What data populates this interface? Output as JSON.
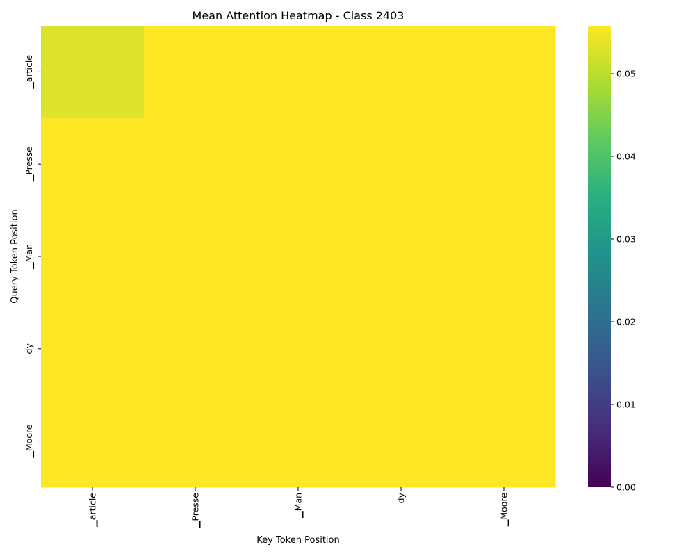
{
  "chart_data": {
    "type": "heatmap",
    "title": "Mean Attention Heatmap - Class 2403",
    "xlabel": "Key Token Position",
    "ylabel": "Query Token Position",
    "x_tick_labels": [
      "▁article",
      "▁Presse",
      "▁Man",
      "dy",
      "▁Moore"
    ],
    "y_tick_labels": [
      "▁article",
      "▁Presse",
      "▁Man",
      "dy",
      "▁Moore"
    ],
    "values": [
      [
        0.053,
        0.0558,
        0.0558,
        0.0558,
        0.0558
      ],
      [
        0.0558,
        0.0558,
        0.0558,
        0.0558,
        0.0558
      ],
      [
        0.0558,
        0.0558,
        0.0558,
        0.0558,
        0.0558
      ],
      [
        0.0558,
        0.0558,
        0.0558,
        0.0558,
        0.0558
      ],
      [
        0.0558,
        0.0558,
        0.0558,
        0.0558,
        0.0558
      ]
    ],
    "colormap": "viridis",
    "colorbar": {
      "vmin": 0.0,
      "vmax": 0.0558,
      "ticks": [
        0.0,
        0.01,
        0.02,
        0.03,
        0.04,
        0.05
      ],
      "tick_labels": [
        "0.00",
        "0.01",
        "0.02",
        "0.03",
        "0.04",
        "0.05"
      ]
    }
  }
}
